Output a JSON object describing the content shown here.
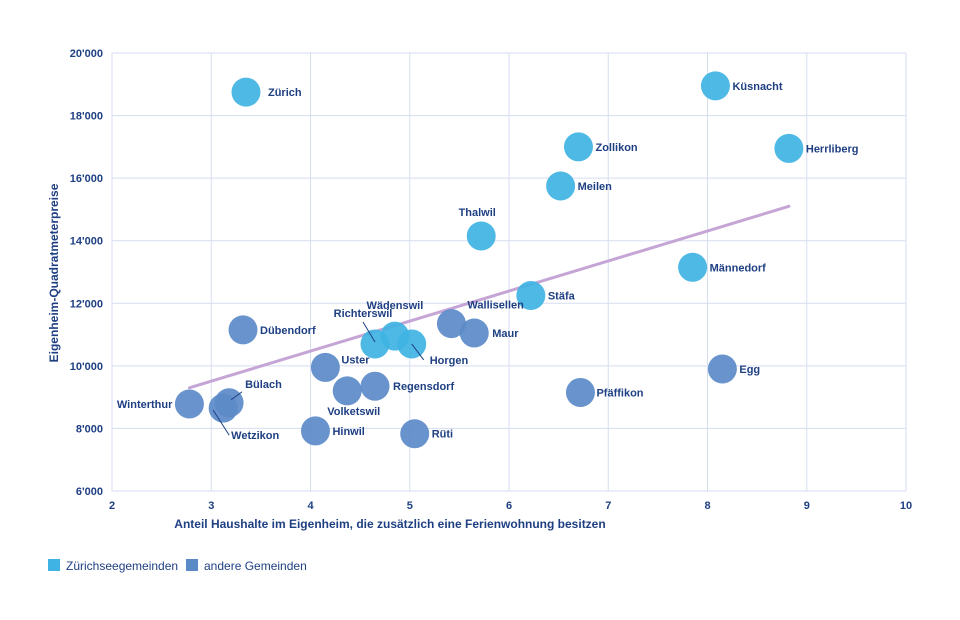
{
  "chart_data": {
    "type": "scatter",
    "title": "",
    "xlabel": "Anteil Haushalte im Eigenheim, die zusätzlich eine Ferienwohnung besitzen",
    "ylabel": "Eigenheim-Quadratmeterpreise",
    "xlim": [
      2,
      10
    ],
    "ylim": [
      6000,
      20000
    ],
    "x_ticks": [
      "2",
      "3",
      "4",
      "5",
      "6",
      "7",
      "8",
      "9",
      "10"
    ],
    "y_ticks": [
      "6'000",
      "8'000",
      "10'000",
      "12'000",
      "14'000",
      "16'000",
      "18'000",
      "20'000"
    ],
    "grid": true,
    "legend_position": "bottom-left",
    "series": [
      {
        "name": "Zürichseegemeinden",
        "color": "#3fb3e3",
        "points": [
          {
            "label": "Zürich",
            "x": 3.35,
            "y": 18750
          },
          {
            "label": "Küsnacht",
            "x": 8.08,
            "y": 18950
          },
          {
            "label": "Zollikon",
            "x": 6.7,
            "y": 17000
          },
          {
            "label": "Herrliberg",
            "x": 8.82,
            "y": 16950
          },
          {
            "label": "Meilen",
            "x": 6.52,
            "y": 15750
          },
          {
            "label": "Thalwil",
            "x": 5.72,
            "y": 14150
          },
          {
            "label": "Männedorf",
            "x": 7.85,
            "y": 13150
          },
          {
            "label": "Stäfa",
            "x": 6.22,
            "y": 12250
          },
          {
            "label": "Richterswil",
            "x": 4.65,
            "y": 10700
          },
          {
            "label": "Wädenswil",
            "x": 4.85,
            "y": 10950
          },
          {
            "label": "Horgen",
            "x": 5.02,
            "y": 10700
          }
        ]
      },
      {
        "name": "andere Gemeinden",
        "color": "#5b8ac8",
        "points": [
          {
            "label": "Dübendorf",
            "x": 3.32,
            "y": 11150
          },
          {
            "label": "Wallisellen",
            "x": 5.42,
            "y": 11350
          },
          {
            "label": "Maur",
            "x": 5.65,
            "y": 11050
          },
          {
            "label": "Uster",
            "x": 4.15,
            "y": 9950
          },
          {
            "label": "Regensdorf",
            "x": 4.65,
            "y": 9350
          },
          {
            "label": "Volketswil",
            "x": 4.37,
            "y": 9200
          },
          {
            "label": "Egg",
            "x": 8.15,
            "y": 9900
          },
          {
            "label": "Pfäffikon",
            "x": 6.72,
            "y": 9150
          },
          {
            "label": "Winterthur",
            "x": 2.78,
            "y": 8780
          },
          {
            "label": "Bülach",
            "x": 3.18,
            "y": 8820
          },
          {
            "label": "Wetzikon",
            "x": 3.12,
            "y": 8650
          },
          {
            "label": "Hinwil",
            "x": 4.05,
            "y": 7920
          },
          {
            "label": "Rüti",
            "x": 5.05,
            "y": 7830
          }
        ]
      }
    ],
    "trendline": {
      "color": "#c5a5d6",
      "x": [
        2.78,
        8.82
      ],
      "y": [
        9300,
        15100
      ]
    }
  }
}
